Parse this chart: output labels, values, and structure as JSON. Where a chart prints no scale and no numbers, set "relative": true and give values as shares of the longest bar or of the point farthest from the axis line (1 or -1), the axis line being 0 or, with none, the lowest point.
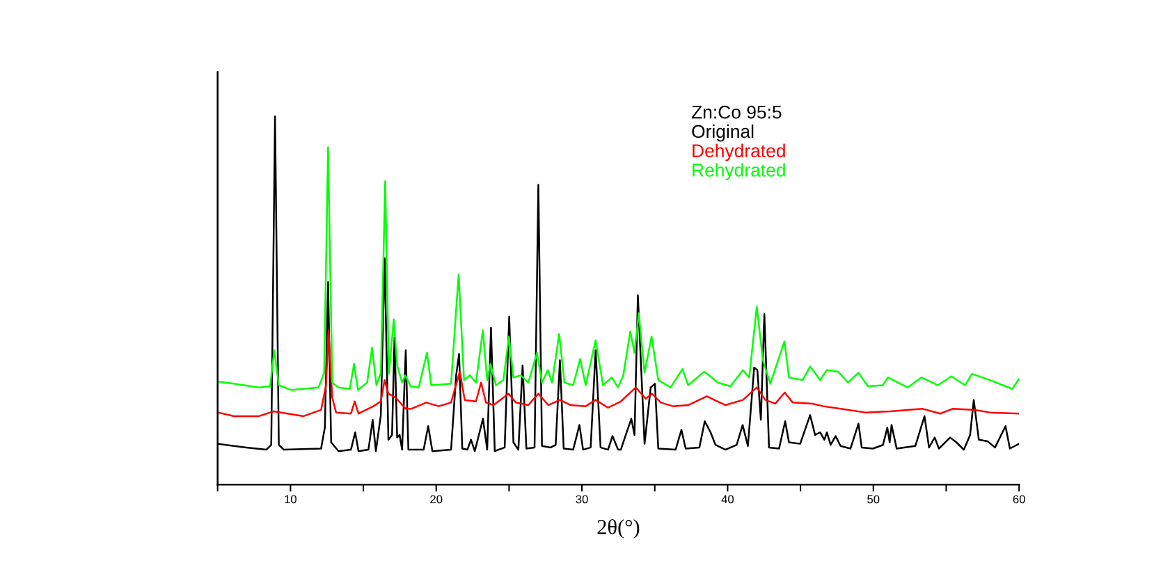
{
  "chart_data": {
    "type": "line",
    "relative": true,
    "xlabel": "2θ(°)",
    "legend_title": "Zn:Co 95:5",
    "legend": "top right",
    "grid": false,
    "tick_labels": "x",
    "xlim": [
      5,
      60
    ],
    "xticks": [
      {
        "value": 5,
        "label": null
      },
      10,
      {
        "value": 15,
        "label": null
      },
      20,
      {
        "value": 25,
        "label": null
      },
      30,
      {
        "value": 35,
        "label": null
      },
      40,
      {
        "value": 45,
        "label": null
      },
      50,
      {
        "value": 55,
        "label": null
      },
      60
    ],
    "series": [
      {
        "name": "Original",
        "color": "#000000",
        "x": [
          5.03,
          6.12,
          6.97,
          8.34,
          8.68,
          8.94,
          9.2,
          9.54,
          12.1,
          12.36,
          12.58,
          12.79,
          13.3,
          14.15,
          14.44,
          14.67,
          15.35,
          15.64,
          15.86,
          16.2,
          16.46,
          16.72,
          16.97,
          17.14,
          17.32,
          17.49,
          17.66,
          17.91,
          18.09,
          18.29,
          19.14,
          19.45,
          19.74,
          21.02,
          21.37,
          21.57,
          21.79,
          22.14,
          22.39,
          22.65,
          23.21,
          23.5,
          23.76,
          24.02,
          24.7,
          25.01,
          25.3,
          25.64,
          25.93,
          26.19,
          26.75,
          27.01,
          27.26,
          27.86,
          28.2,
          28.49,
          28.75,
          29.4,
          29.83,
          30.08,
          30.6,
          30.94,
          31.28,
          31.79,
          32.1,
          32.48,
          32.67,
          33.01,
          33.39,
          33.61,
          33.84,
          34.3,
          34.72,
          35.01,
          35.24,
          36.43,
          36.83,
          37.12,
          38.06,
          38.43,
          38.83,
          39.17,
          39.85,
          40.62,
          41.03,
          41.39,
          41.82,
          42.04,
          42.28,
          42.52,
          42.84,
          43.53,
          43.95,
          44.21,
          44.98,
          45.66,
          46.0,
          46.35,
          46.64,
          46.81,
          47.07,
          47.41,
          47.75,
          48.43,
          48.98,
          49.2,
          49.97,
          50.66,
          50.96,
          51.12,
          51.25,
          51.6,
          52.88,
          53.51,
          53.82,
          54.21,
          54.5,
          55.27,
          55.7,
          56.21,
          56.64,
          56.89,
          57.24,
          57.83,
          58.35,
          59.07,
          59.37,
          60.0
        ],
        "values": [
          0.111,
          0.105,
          0.101,
          0.095,
          0.108,
          1.0,
          0.108,
          0.095,
          0.098,
          0.155,
          0.55,
          0.115,
          0.091,
          0.095,
          0.142,
          0.091,
          0.095,
          0.176,
          0.091,
          0.189,
          0.615,
          0.122,
          0.135,
          0.399,
          0.128,
          0.135,
          0.095,
          0.365,
          0.095,
          0.095,
          0.095,
          0.159,
          0.091,
          0.095,
          0.297,
          0.355,
          0.098,
          0.095,
          0.122,
          0.091,
          0.179,
          0.095,
          0.426,
          0.091,
          0.101,
          0.456,
          0.115,
          0.095,
          0.324,
          0.098,
          0.101,
          0.814,
          0.105,
          0.101,
          0.108,
          0.338,
          0.098,
          0.095,
          0.162,
          0.095,
          0.101,
          0.365,
          0.101,
          0.095,
          0.132,
          0.095,
          0.095,
          0.135,
          0.179,
          0.135,
          0.514,
          0.111,
          0.264,
          0.274,
          0.098,
          0.095,
          0.149,
          0.098,
          0.101,
          0.172,
          0.142,
          0.108,
          0.095,
          0.108,
          0.162,
          0.105,
          0.318,
          0.311,
          0.176,
          0.463,
          0.101,
          0.098,
          0.172,
          0.115,
          0.111,
          0.189,
          0.135,
          0.142,
          0.122,
          0.142,
          0.108,
          0.132,
          0.105,
          0.098,
          0.166,
          0.101,
          0.098,
          0.108,
          0.155,
          0.115,
          0.162,
          0.098,
          0.105,
          0.186,
          0.101,
          0.128,
          0.098,
          0.128,
          0.115,
          0.095,
          0.135,
          0.23,
          0.122,
          0.118,
          0.101,
          0.159,
          0.098,
          0.111
        ]
      },
      {
        "name": "Dehydrated",
        "color": "#ff0000",
        "x": [
          5.03,
          6.12,
          7.83,
          8.85,
          10.9,
          12.1,
          12.44,
          12.61,
          12.87,
          13.13,
          14.15,
          14.41,
          14.67,
          15.69,
          16.2,
          16.46,
          16.72,
          17.23,
          17.91,
          18.29,
          19.32,
          20.17,
          21.02,
          21.62,
          21.96,
          22.73,
          23.08,
          23.42,
          23.93,
          24.96,
          25.47,
          26.32,
          27.01,
          27.69,
          28.49,
          29.23,
          30.26,
          30.94,
          31.79,
          32.67,
          33.7,
          34.38,
          34.81,
          35.41,
          36.26,
          37.29,
          38.57,
          39.85,
          41.05,
          42.0,
          42.59,
          43.27,
          43.92,
          44.47,
          45.83,
          46.55,
          47.75,
          49.46,
          51.17,
          53.39,
          54.59,
          55.44,
          56.98,
          58.0,
          60.0
        ],
        "values": [
          0.196,
          0.186,
          0.186,
          0.199,
          0.186,
          0.203,
          0.27,
          0.419,
          0.236,
          0.196,
          0.193,
          0.226,
          0.193,
          0.213,
          0.226,
          0.284,
          0.247,
          0.236,
          0.206,
          0.206,
          0.223,
          0.213,
          0.223,
          0.307,
          0.23,
          0.226,
          0.277,
          0.223,
          0.216,
          0.247,
          0.223,
          0.216,
          0.247,
          0.216,
          0.23,
          0.216,
          0.213,
          0.23,
          0.209,
          0.226,
          0.264,
          0.233,
          0.247,
          0.223,
          0.213,
          0.216,
          0.24,
          0.216,
          0.23,
          0.264,
          0.23,
          0.22,
          0.25,
          0.223,
          0.22,
          0.213,
          0.206,
          0.196,
          0.199,
          0.206,
          0.193,
          0.206,
          0.203,
          0.196,
          0.193
        ]
      },
      {
        "name": "Rehydrated",
        "color": "#00ff00",
        "x": [
          5.03,
          6.12,
          7.83,
          8.6,
          8.89,
          9.2,
          10.05,
          11.93,
          12.31,
          12.58,
          12.87,
          13.3,
          14.07,
          14.36,
          14.63,
          15.26,
          15.6,
          15.9,
          16.2,
          16.5,
          16.75,
          17.09,
          17.32,
          17.66,
          17.88,
          18.25,
          18.8,
          19.37,
          19.66,
          21.02,
          21.54,
          21.91,
          22.31,
          22.73,
          23.2,
          23.5,
          23.73,
          24.1,
          24.61,
          24.99,
          25.3,
          25.81,
          26.32,
          26.92,
          27.26,
          27.66,
          27.95,
          28.44,
          28.8,
          29.4,
          29.88,
          30.26,
          30.94,
          31.45,
          32.05,
          32.48,
          32.84,
          33.32,
          33.61,
          33.9,
          34.3,
          34.78,
          35.24,
          36.09,
          36.9,
          37.29,
          38.4,
          39.34,
          40.19,
          41.05,
          41.48,
          42.0,
          42.42,
          42.93,
          43.9,
          44.21,
          45.15,
          45.66,
          46.35,
          46.81,
          47.58,
          48.26,
          48.98,
          49.63,
          50.66,
          51.0,
          52.36,
          53.3,
          54.42,
          55.36,
          56.3,
          56.77,
          58.0,
          59.54,
          60.0
        ],
        "values": [
          0.28,
          0.274,
          0.264,
          0.267,
          0.365,
          0.27,
          0.257,
          0.264,
          0.304,
          0.916,
          0.277,
          0.264,
          0.26,
          0.328,
          0.257,
          0.277,
          0.372,
          0.27,
          0.304,
          0.824,
          0.301,
          0.449,
          0.324,
          0.277,
          0.297,
          0.267,
          0.264,
          0.358,
          0.27,
          0.274,
          0.571,
          0.284,
          0.297,
          0.277,
          0.419,
          0.284,
          0.328,
          0.27,
          0.284,
          0.402,
          0.291,
          0.297,
          0.277,
          0.358,
          0.277,
          0.311,
          0.277,
          0.409,
          0.277,
          0.27,
          0.341,
          0.27,
          0.392,
          0.27,
          0.291,
          0.264,
          0.297,
          0.416,
          0.358,
          0.466,
          0.304,
          0.402,
          0.284,
          0.264,
          0.314,
          0.27,
          0.307,
          0.277,
          0.267,
          0.311,
          0.291,
          0.483,
          0.338,
          0.274,
          0.389,
          0.291,
          0.284,
          0.321,
          0.284,
          0.311,
          0.307,
          0.277,
          0.304,
          0.267,
          0.27,
          0.291,
          0.264,
          0.291,
          0.27,
          0.294,
          0.27,
          0.301,
          0.284,
          0.26,
          0.287
        ]
      }
    ]
  }
}
